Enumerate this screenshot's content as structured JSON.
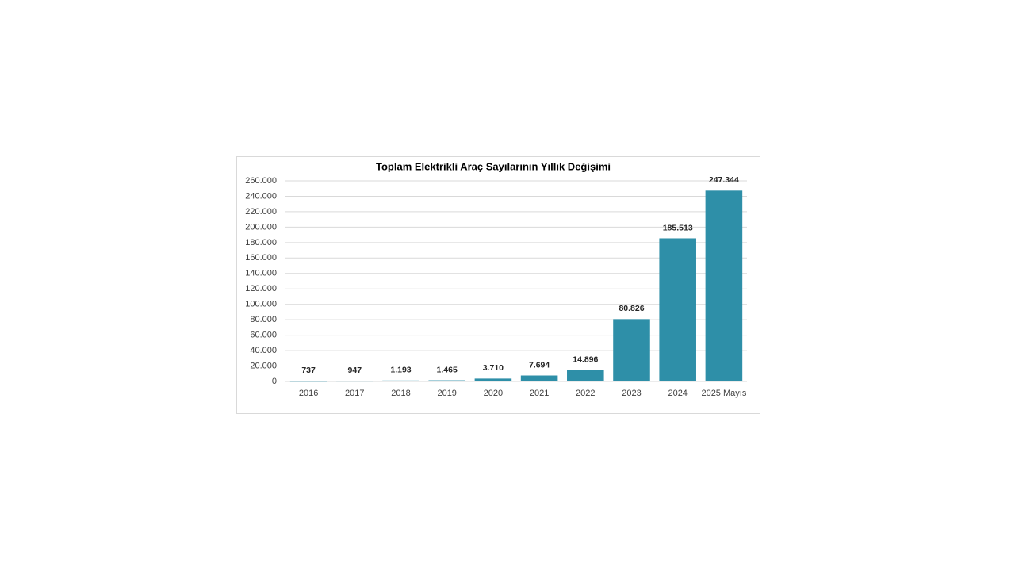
{
  "chart_data": {
    "type": "bar",
    "title": "Toplam Elektrikli Araç Sayılarının Yıllık Değişimi",
    "categories": [
      "2016",
      "2017",
      "2018",
      "2019",
      "2020",
      "2021",
      "2022",
      "2023",
      "2024",
      "2025 Mayıs"
    ],
    "values": [
      737,
      947,
      1193,
      1465,
      3710,
      7694,
      14896,
      80826,
      185513,
      247344
    ],
    "value_labels": [
      "737",
      "947",
      "1.193",
      "1.465",
      "3.710",
      "7.694",
      "14.896",
      "80.826",
      "185.513",
      "247.344"
    ],
    "color": "#2e8fa8",
    "ylim": [
      0,
      260000
    ],
    "yticks": [
      0,
      {
        "value": 20000,
        "label": "20.000"
      },
      {
        "value": 40000,
        "label": "40.000"
      },
      {
        "value": 60000,
        "label": "60.000"
      },
      {
        "value": 80000,
        "label": "80.000"
      },
      {
        "value": 100000,
        "label": "100.000"
      },
      {
        "value": 120000,
        "label": "120.000"
      },
      {
        "value": 140000,
        "label": "140.000"
      },
      {
        "value": 160000,
        "label": "160.000"
      },
      {
        "value": 180000,
        "label": "180.000"
      },
      {
        "value": 200000,
        "label": "200.000"
      },
      {
        "value": 220000,
        "label": "220.000"
      },
      {
        "value": 240000,
        "label": "240.000"
      },
      {
        "value": 260000,
        "label": "260.000"
      }
    ],
    "grid": true
  }
}
